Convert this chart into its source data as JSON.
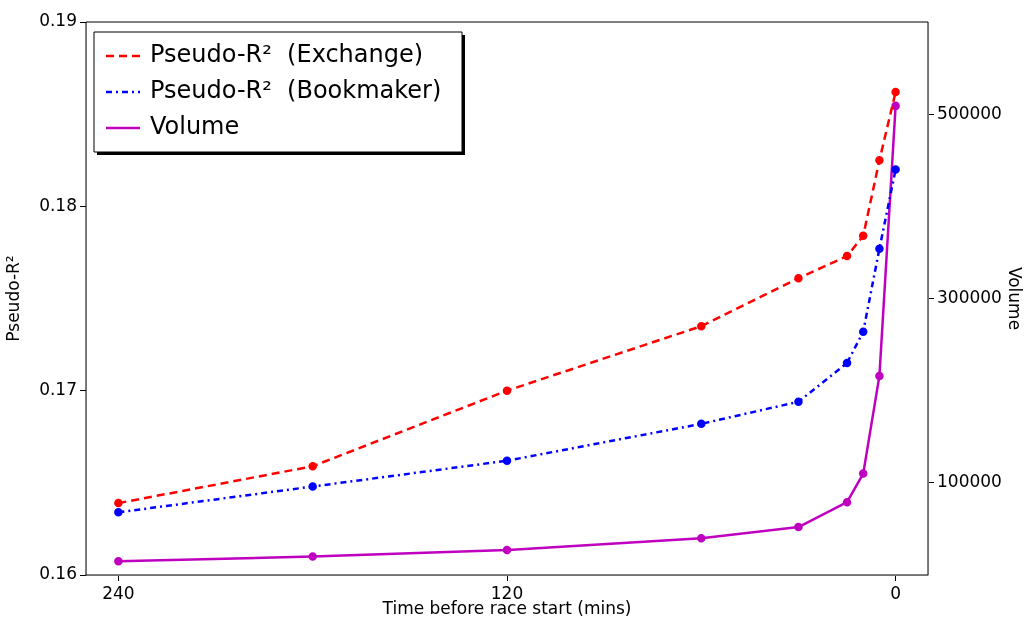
{
  "chart_data": {
    "type": "line",
    "xlabel": "Time before race start (mins)",
    "ylabel": "Pseudo-R²",
    "y2label": "Volume",
    "x": [
      240,
      180,
      120,
      60,
      30,
      15,
      10,
      5,
      0
    ],
    "xlim": [
      250,
      -10
    ],
    "xticks": [
      240,
      120,
      0
    ],
    "ylim": [
      0.16,
      0.19
    ],
    "yticks": [
      0.16,
      0.17,
      0.18,
      0.19
    ],
    "y2lim": [
      0,
      600000
    ],
    "y2ticks": [
      100000,
      300000,
      500000
    ],
    "series": [
      {
        "name": "Pseudo-R²  (Exchange)",
        "color": "#ff0000",
        "line_style": "dashed",
        "values": [
          0.1639,
          0.1659,
          0.17,
          0.1735,
          0.1761,
          0.1773,
          0.1784,
          0.1825,
          0.1862
        ]
      },
      {
        "name": "Pseudo-R²  (Bookmaker)",
        "color": "#0000ff",
        "line_style": "dotted",
        "values": [
          0.1634,
          0.1648,
          0.1662,
          0.1682,
          0.1694,
          0.1715,
          0.1732,
          0.1777,
          0.182
        ]
      },
      {
        "name": "Volume",
        "color": "#bf00bf",
        "line_style": "solid",
        "axis": "y2",
        "values": [
          15000,
          20000,
          27000,
          40000,
          52000,
          79000,
          110000,
          216000,
          509000
        ]
      }
    ],
    "marker": "circle",
    "grid": false,
    "legend": "top left"
  }
}
